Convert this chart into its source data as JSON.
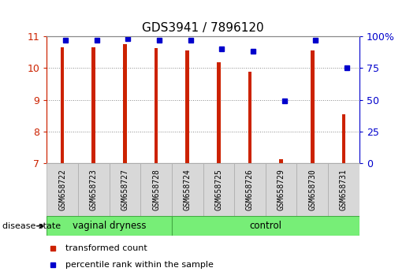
{
  "title": "GDS3941 / 7896120",
  "samples": [
    "GSM658722",
    "GSM658723",
    "GSM658727",
    "GSM658728",
    "GSM658724",
    "GSM658725",
    "GSM658726",
    "GSM658729",
    "GSM658730",
    "GSM658731"
  ],
  "red_values": [
    10.65,
    10.65,
    10.75,
    10.62,
    10.55,
    10.17,
    9.88,
    7.13,
    10.55,
    8.55
  ],
  "blue_values": [
    97,
    97,
    98,
    97,
    97,
    90,
    88,
    49,
    97,
    75
  ],
  "groups": [
    {
      "label": "vaginal dryness",
      "start": 0,
      "end": 4
    },
    {
      "label": "control",
      "start": 4,
      "end": 10
    }
  ],
  "ylim_left": [
    7,
    11
  ],
  "ylim_right": [
    0,
    100
  ],
  "yticks_left": [
    7,
    8,
    9,
    10,
    11
  ],
  "yticks_right": [
    0,
    25,
    50,
    75,
    100
  ],
  "bar_color": "#cc2200",
  "dot_color": "#0000cc",
  "group_fill": "#77ee77",
  "group_edge": "#44aa44",
  "sample_bg": "#d8d8d8",
  "sample_edge": "#aaaaaa",
  "bg_color": "#ffffff",
  "plot_bg": "#ffffff",
  "grid_color": "#888888",
  "label_color_left": "#cc2200",
  "label_color_right": "#0000cc",
  "disease_state_label": "disease state",
  "legend_items": [
    {
      "label": "transformed count",
      "color": "#cc2200"
    },
    {
      "label": "percentile rank within the sample",
      "color": "#0000cc"
    }
  ]
}
